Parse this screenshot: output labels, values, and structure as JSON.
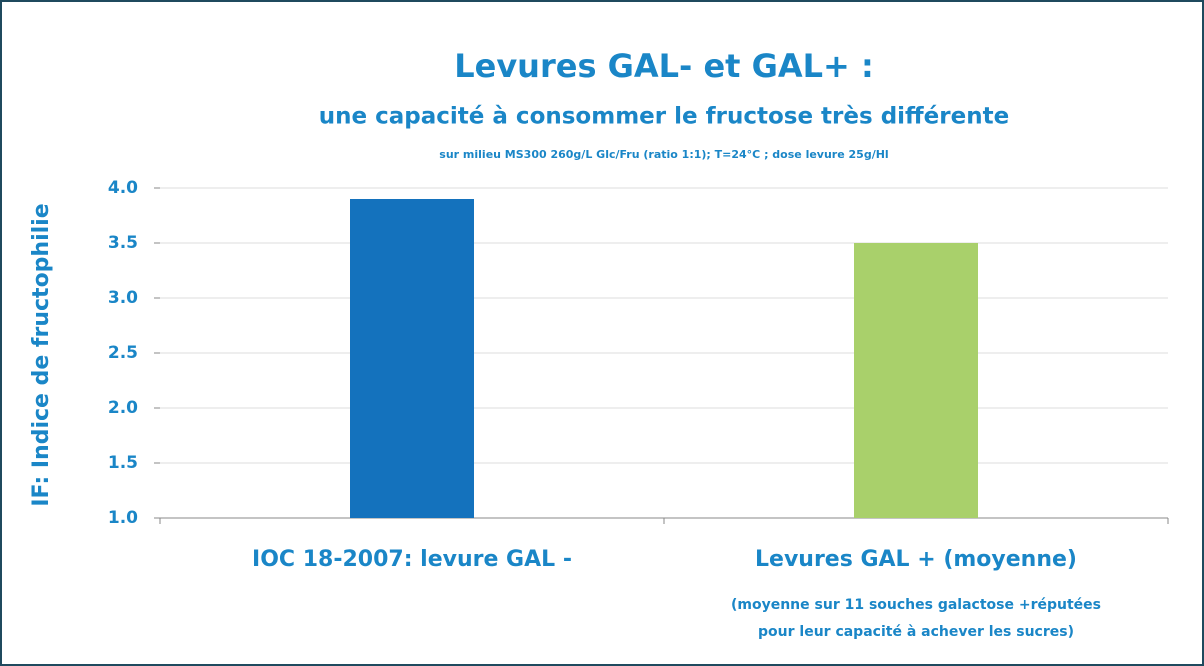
{
  "chart_data": {
    "type": "bar",
    "title": "Levures GAL- et GAL+ :",
    "subtitle": "une capacité à consommer le fructose très différente",
    "note": "sur milieu MS300 260g/L Glc/Fru (ratio 1:1); T=24°C ; dose levure 25g/Hl",
    "y_label": "IF: Indice de fructophilie",
    "categories": [
      "IOC 18-2007: levure GAL -",
      "Levures GAL + (moyenne)"
    ],
    "values": [
      3.9,
      3.5
    ],
    "colors": [
      "#1472bd",
      "#a9d06b"
    ],
    "annotations": [
      "(moyenne sur 11 souches galactose +réputées",
      "pour leur capacité à achever les sucres)"
    ],
    "ylim": [
      1,
      4
    ],
    "yticks": [
      {
        "value": 1,
        "label": "1.0"
      },
      1.5,
      {
        "value": 2,
        "label": "2.0"
      },
      2.5,
      {
        "value": 3,
        "label": "3.0"
      },
      3.5,
      {
        "value": 4,
        "label": "4.0"
      }
    ],
    "grid": true
  }
}
